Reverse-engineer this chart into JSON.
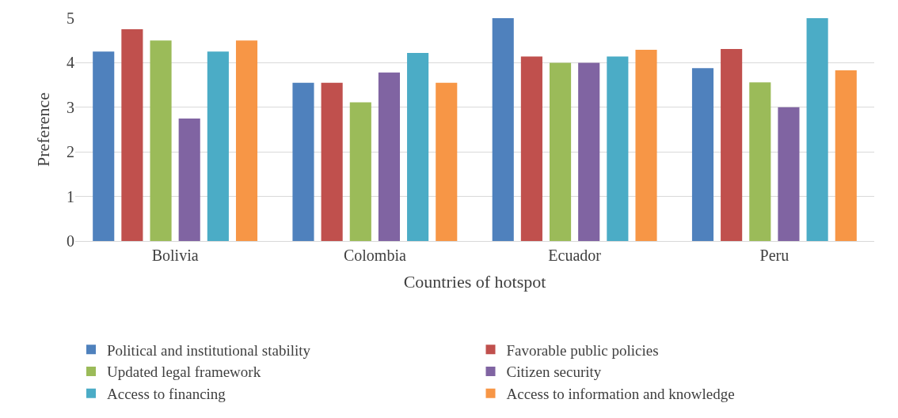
{
  "chart_data": {
    "type": "bar",
    "xlabel": "Countries of hotspot",
    "ylabel": "Preference",
    "categories": [
      "Bolivia",
      "Colombia",
      "Ecuador",
      "Peru"
    ],
    "series": [
      {
        "name": "Political and institutional stability",
        "color": "#4f81bd",
        "values": [
          4.25,
          3.55,
          5,
          3.88
        ]
      },
      {
        "name": "Favorable public policies",
        "color": "#c0504d",
        "values": [
          4.75,
          3.55,
          4.14,
          4.31
        ]
      },
      {
        "name": "Updated legal framework",
        "color": "#9bbb59",
        "values": [
          4.5,
          3.11,
          4,
          3.56
        ]
      },
      {
        "name": "Citizen security",
        "color": "#8064a2",
        "values": [
          2.75,
          3.78,
          4,
          3
        ]
      },
      {
        "name": "Access to financing",
        "color": "#4bacc6",
        "values": [
          4.25,
          4.22,
          4.14,
          5
        ]
      },
      {
        "name": "Access to information and knowledge",
        "color": "#f79646",
        "values": [
          4.5,
          3.55,
          4.29,
          3.83
        ]
      }
    ],
    "ylim": [
      0,
      5
    ],
    "yticks": [
      0,
      1,
      2,
      3,
      4,
      5
    ],
    "grid": "y",
    "legend": "bottom"
  }
}
